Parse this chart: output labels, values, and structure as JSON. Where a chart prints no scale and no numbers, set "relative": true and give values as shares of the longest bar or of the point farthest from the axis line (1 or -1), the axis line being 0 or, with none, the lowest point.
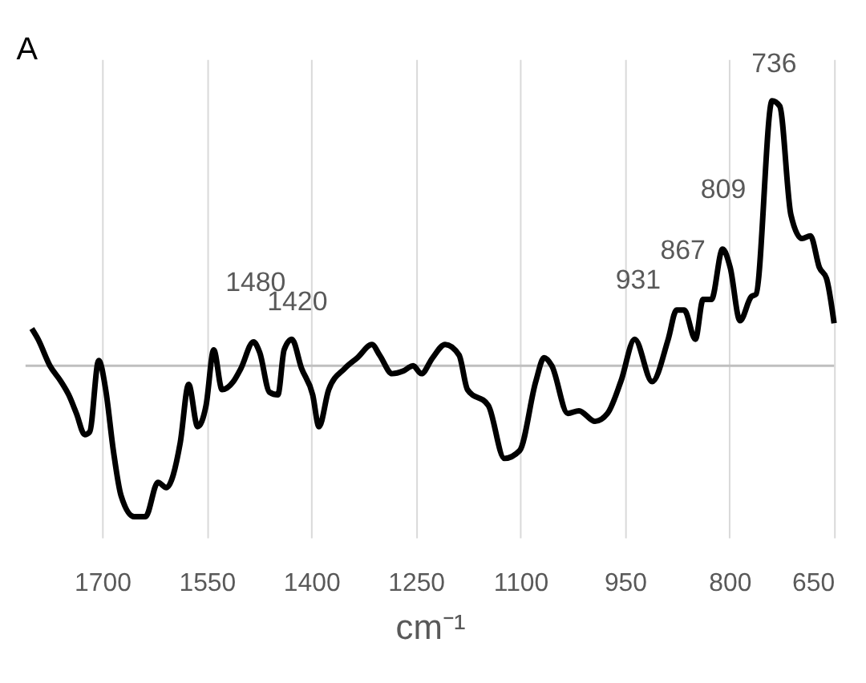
{
  "chart_data": {
    "type": "line",
    "title": "A",
    "xlabel": "cm⁻¹",
    "relative": true,
    "grid": "x",
    "marker": "none",
    "line_style": "solid",
    "xlim": [
      1810,
      650
    ],
    "xticks": [
      1700,
      1550,
      1400,
      1250,
      1100,
      950,
      800,
      650
    ],
    "tick_labels": "x",
    "series": [
      {
        "color": "#000000",
        "x": [
          1801,
          1792,
          1775,
          1759,
          1748,
          1737,
          1725,
          1718,
          1705,
          1695,
          1684,
          1673,
          1654,
          1638,
          1620,
          1608,
          1588,
          1576,
          1563,
          1551,
          1540,
          1528,
          1512,
          1501,
          1483,
          1474,
          1460,
          1448,
          1439,
          1428,
          1414,
          1398,
          1389,
          1375,
          1352,
          1334,
          1313,
          1302,
          1284,
          1268,
          1254,
          1242,
          1226,
          1208,
          1188,
          1176,
          1146,
          1123,
          1101,
          1078,
          1066,
          1055,
          1032,
          1016,
          993,
          975,
          956,
          936,
          911,
          888,
          876,
          865,
          849,
          838,
          826,
          810,
          799,
          785,
          769,
          762,
          739,
          728,
          712,
          696,
          684,
          671,
          661,
          650
        ],
        "values": [
          0.14,
          0.1,
          0,
          -0.06,
          -0.11,
          -0.18,
          -0.26,
          -0.25,
          0.02,
          -0.09,
          -0.32,
          -0.49,
          -0.57,
          -0.57,
          -0.44,
          -0.46,
          -0.29,
          -0.07,
          -0.23,
          -0.15,
          0.06,
          -0.09,
          -0.06,
          -0.01,
          0.09,
          0.05,
          -0.1,
          -0.11,
          0.06,
          0.1,
          -0.01,
          -0.11,
          -0.23,
          -0.09,
          -0.01,
          0.03,
          0.08,
          0.04,
          -0.03,
          -0.02,
          0,
          -0.03,
          0.03,
          0.08,
          0.04,
          -0.09,
          -0.15,
          -0.35,
          -0.32,
          -0.06,
          0.03,
          0,
          -0.18,
          -0.17,
          -0.21,
          -0.18,
          -0.06,
          0.1,
          -0.06,
          0.1,
          0.21,
          0.21,
          0.1,
          0.25,
          0.25,
          0.44,
          0.37,
          0.17,
          0.26,
          0.27,
          1.0,
          0.98,
          0.57,
          0.48,
          0.49,
          0.37,
          0.33,
          0.16
        ]
      }
    ],
    "annotations": [
      {
        "text": "1480",
        "x": 1480,
        "y": 0.09
      },
      {
        "text": "1420",
        "x": 1420,
        "y": 0.1
      },
      {
        "text": "931",
        "x": 931,
        "y": 0.1
      },
      {
        "text": "867",
        "x": 867,
        "y": 0.21
      },
      {
        "text": "809",
        "x": 809,
        "y": 0.44
      },
      {
        "text": "736",
        "x": 736,
        "y": 1.0
      }
    ]
  }
}
